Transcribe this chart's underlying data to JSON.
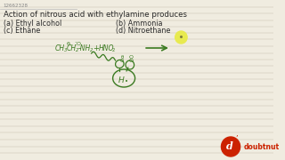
{
  "bg_color": "#f0ece0",
  "title_id": "12662328",
  "question": "Action of nitrous acid with ethylamine produces",
  "options": [
    "(a) Ethyl alcohol",
    "(b) Ammonia",
    "(c) Ethane",
    "(d) Nitroethane"
  ],
  "text_color": "#2a2a2a",
  "green_color": "#3a7a20",
  "line_color": "#c8c0b0",
  "yellow_circle_color": "#e8ea50",
  "doubtnut_red": "#cc2200"
}
